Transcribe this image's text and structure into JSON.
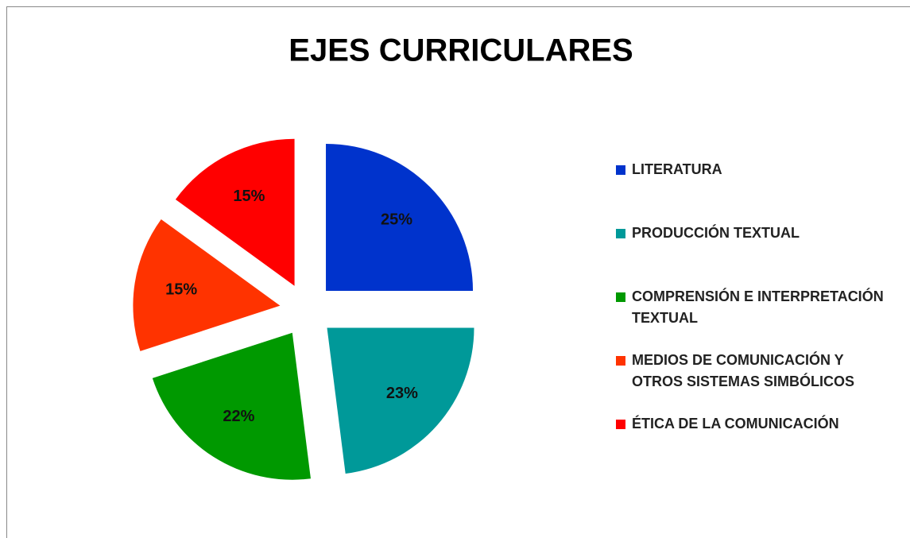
{
  "chart_data": {
    "type": "pie",
    "title": "EJES CURRICULARES",
    "categories": [
      "LITERATURA",
      "PRODUCCIÓN TEXTUAL",
      "COMPRENSIÓN E INTERPRETACIÓN TEXTUAL",
      "MEDIOS DE COMUNICACIÓN Y OTROS SISTEMAS SIMBÓLICOS",
      "ÉTICA DE LA COMUNICACIÓN"
    ],
    "values": [
      25,
      23,
      22,
      15,
      15
    ],
    "value_labels": [
      "25%",
      "23%",
      "22%",
      "15%",
      "15%"
    ],
    "colors": [
      "#0033cc",
      "#009999",
      "#009900",
      "#ff3300",
      "#ff0000"
    ],
    "legend": "right"
  }
}
